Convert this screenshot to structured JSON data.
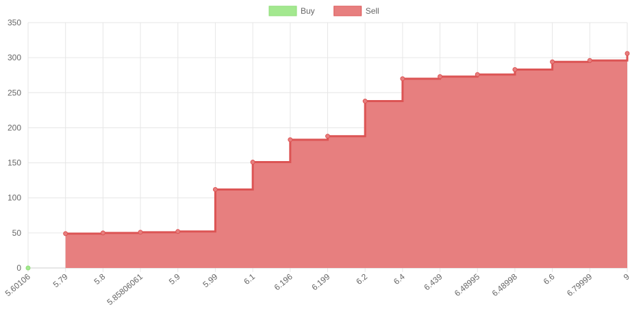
{
  "chart_data": {
    "type": "stepped-area",
    "categories": [
      "5.60106",
      "5.79",
      "5.8",
      "5.85806061",
      "5.9",
      "5.99",
      "6.1",
      "6.196",
      "6.199",
      "6.2",
      "6.4",
      "6.439",
      "6.48995",
      "6.48998",
      "6.6",
      "6.79999",
      "9"
    ],
    "series": [
      {
        "name": "Buy",
        "color": "#a3e88f",
        "line_color": "#8fdc78",
        "values": [
          0,
          null,
          null,
          null,
          null,
          null,
          null,
          null,
          null,
          null,
          null,
          null,
          null,
          null,
          null,
          null,
          null
        ]
      },
      {
        "name": "Sell",
        "color": "#e77f7f",
        "line_color": "#dc5454",
        "values": [
          null,
          49,
          50,
          51,
          52,
          112,
          151,
          183,
          188,
          238,
          270,
          273,
          276,
          283,
          294,
          296,
          306
        ]
      }
    ],
    "ylim": [
      0,
      350
    ],
    "yticks": [
      0,
      50,
      100,
      150,
      200,
      250,
      300,
      350
    ],
    "grid": true,
    "legend": "top"
  }
}
